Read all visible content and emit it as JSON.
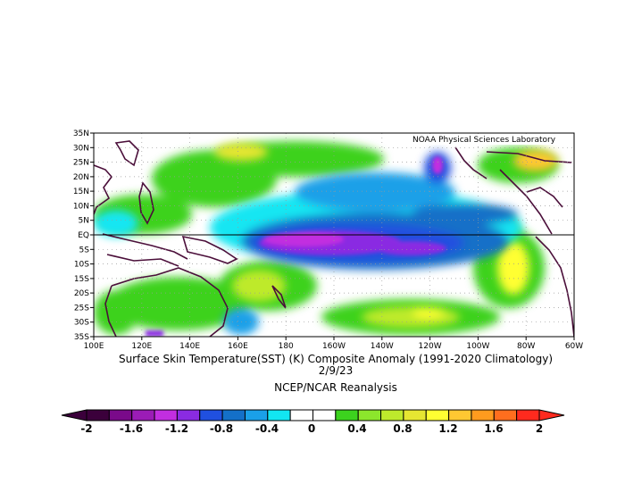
{
  "credit": "NOAA Physical Sciences Laboratory",
  "title": {
    "line1": "Surface Skin Temperature(SST) (K) Composite Anomaly (1991-2020 Climatology)",
    "line2": "2/9/23"
  },
  "source": "NCEP/NCAR Reanalysis",
  "lat_labels": [
    "35N",
    "30N",
    "25N",
    "20N",
    "15N",
    "10N",
    "5N",
    "EQ",
    "5S",
    "10S",
    "15S",
    "20S",
    "25S",
    "30S",
    "35S"
  ],
  "lon_labels": [
    "100E",
    "120E",
    "140E",
    "160E",
    "180",
    "160W",
    "140W",
    "120W",
    "100W",
    "80W",
    "60W"
  ],
  "colorbar": {
    "labels": [
      "-2",
      "-1.6",
      "-1.2",
      "-0.8",
      "-0.4",
      "0",
      "0.4",
      "0.8",
      "1.2",
      "1.6",
      "2"
    ],
    "colors": [
      "#3b003b",
      "#7a0a8a",
      "#9b1cb6",
      "#c22ee0",
      "#8a2be2",
      "#2050e0",
      "#1470c8",
      "#1aa0e8",
      "#12e6f2",
      "#ffffff",
      "#ffffff",
      "#3cd21e",
      "#8ce62c",
      "#beea2c",
      "#e6e632",
      "#ffff32",
      "#ffc832",
      "#ff9b1e",
      "#ff6e1e",
      "#ff2a1e"
    ]
  },
  "colors": {
    "land_outline": "#4b0f3a",
    "strong_negative": "#9b1cb6",
    "negative": "#2050e0",
    "weak_negative": "#12e6f2",
    "weak_positive": "#3cd21e",
    "positive": "#ffff32"
  }
}
